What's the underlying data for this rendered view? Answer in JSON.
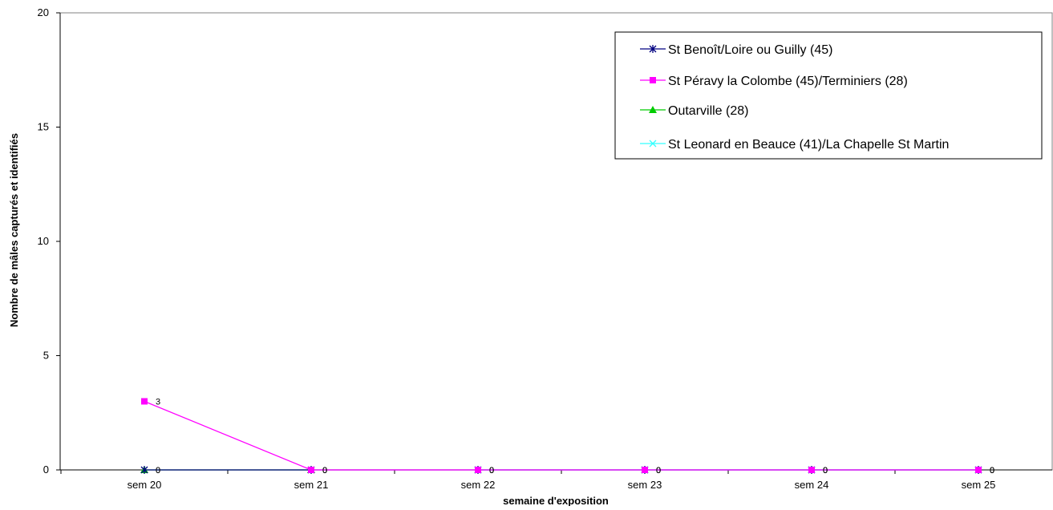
{
  "chart_data": {
    "type": "line",
    "title": "",
    "xlabel": "semaine d'exposition",
    "ylabel": "Nombre de mâles capturés et identifiés",
    "categories": [
      "sem 20",
      "sem 21",
      "sem 22",
      "sem 23",
      "sem 24",
      "sem 25"
    ],
    "ylim": [
      0,
      20
    ],
    "yticks": [
      0,
      5,
      10,
      15,
      20
    ],
    "grid": false,
    "legend_position": "top-right",
    "series": [
      {
        "name": "St Benoît/Loire ou Guilly (45)",
        "values": [
          0,
          0,
          0,
          0,
          0,
          0
        ],
        "color": "#000080",
        "marker": "asterisk",
        "labels": [
          "0",
          "0",
          "0",
          "0",
          "0",
          "0"
        ]
      },
      {
        "name": "St Péravy la Colombe (45)/Terminiers (28)",
        "values": [
          3,
          0,
          0,
          0,
          0,
          0
        ],
        "color": "#ff00ff",
        "marker": "square",
        "labels": [
          "3",
          "0",
          "0",
          "0",
          "0",
          "0"
        ]
      },
      {
        "name": "Outarville (28)",
        "values": [
          0,
          0,
          null,
          null,
          null,
          null
        ],
        "color": "#00cc00",
        "marker": "triangle",
        "labels": [
          "0",
          "0",
          "",
          "",
          "",
          ""
        ]
      },
      {
        "name": "St Leonard en Beauce (41)/La Chapelle St Martin",
        "values": [
          null,
          null,
          0,
          0,
          0,
          0
        ],
        "color": "#33ffff",
        "marker": "x",
        "labels": [
          "",
          "",
          "0",
          "0",
          "0",
          "0"
        ]
      }
    ]
  }
}
